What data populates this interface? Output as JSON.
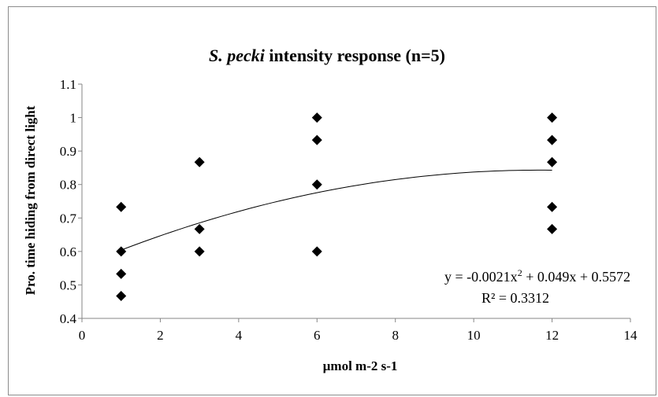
{
  "chart_data": {
    "type": "scatter",
    "title_italic": "S. pecki",
    "title_rest": " intensity response (n=5)",
    "xlabel": "µmol m-2 s-1",
    "ylabel": "Pro. time hiding from direct light",
    "xlim": [
      0,
      14
    ],
    "ylim": [
      0.4,
      1.1
    ],
    "x_ticks": [
      0,
      2,
      4,
      6,
      8,
      10,
      12,
      14
    ],
    "y_ticks": [
      0.4,
      0.5,
      0.6,
      0.7,
      0.8,
      0.9,
      1,
      1.1
    ],
    "x_tick_labels": [
      "0",
      "2",
      "4",
      "6",
      "8",
      "10",
      "12",
      "14"
    ],
    "y_tick_labels": [
      "0.4",
      "0.5",
      "0.6",
      "0.7",
      "0.8",
      "0.9",
      "1",
      "1.1"
    ],
    "grid": false,
    "marker": "diamond",
    "marker_color": "#000000",
    "points": [
      {
        "x": 1,
        "y": 0.733
      },
      {
        "x": 1,
        "y": 0.6
      },
      {
        "x": 1,
        "y": 0.533
      },
      {
        "x": 1,
        "y": 0.467
      },
      {
        "x": 3,
        "y": 0.867
      },
      {
        "x": 3,
        "y": 0.667
      },
      {
        "x": 3,
        "y": 0.6
      },
      {
        "x": 6,
        "y": 1.0
      },
      {
        "x": 6,
        "y": 0.933
      },
      {
        "x": 6,
        "y": 0.8
      },
      {
        "x": 6,
        "y": 0.6
      },
      {
        "x": 12,
        "y": 1.0
      },
      {
        "x": 12,
        "y": 0.933
      },
      {
        "x": 12,
        "y": 0.867
      },
      {
        "x": 12,
        "y": 0.733
      },
      {
        "x": 12,
        "y": 0.667
      }
    ],
    "trendline": {
      "type": "polynomial",
      "coefficients": {
        "a": -0.0021,
        "b": 0.049,
        "c": 0.5572
      },
      "x_range": [
        1,
        12
      ],
      "equation_prefix": "y = -0.0021x",
      "equation_suffix": " + 0.049x + 0.5572",
      "r_squared_label": "R² = 0.3312"
    }
  }
}
